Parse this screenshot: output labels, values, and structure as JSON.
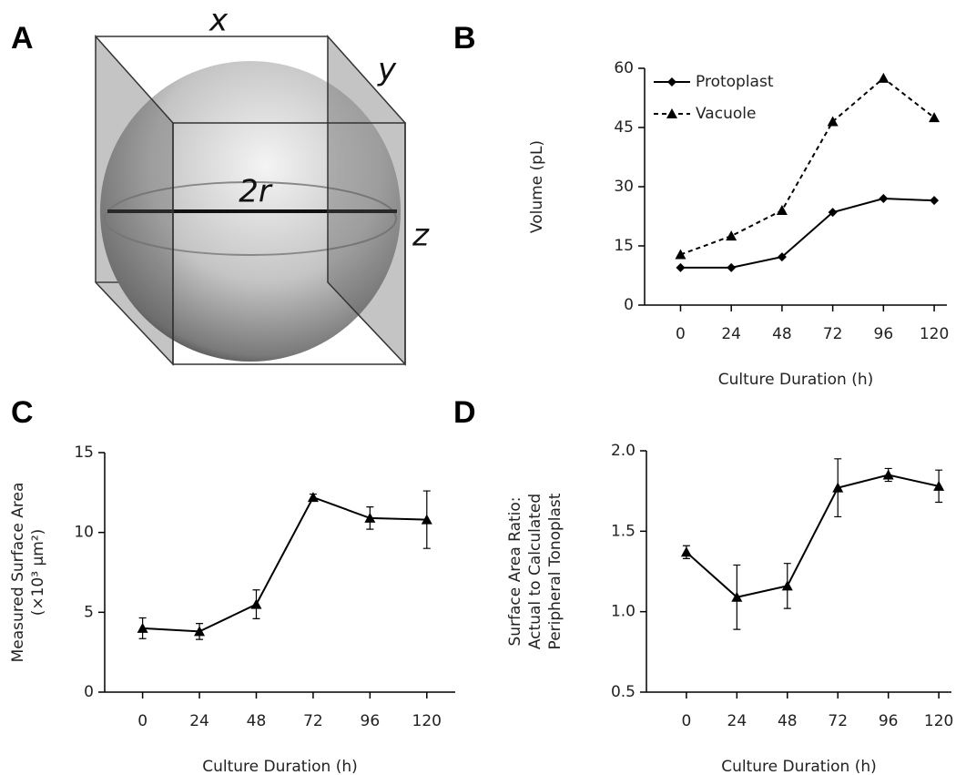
{
  "diagram": {
    "panel": "A",
    "x_label": "x",
    "y_label": "y",
    "z_label": "z",
    "diameter_label": "2r"
  },
  "chart_data": [
    {
      "type": "line",
      "panel": "B",
      "ylabel": [
        "Volume (pL)"
      ],
      "xlabel": "Culture Duration (h)",
      "x": [
        0,
        24,
        48,
        72,
        96,
        120
      ],
      "xlim": [
        -17,
        126
      ],
      "xticks": [
        0,
        24,
        48,
        72,
        96,
        120
      ],
      "ylim": [
        0,
        60
      ],
      "yticks": [
        0,
        15,
        30,
        45,
        60
      ],
      "legend": "top-left",
      "series": [
        {
          "name": "Protoplast",
          "color": "#000000",
          "marker": "diamond",
          "dash": false,
          "values": [
            9.5,
            9.5,
            12.2,
            23.5,
            27,
            26.5
          ]
        },
        {
          "name": "Vacuole",
          "color": "#000000",
          "marker": "triangle",
          "dash": true,
          "values": [
            12.8,
            17.5,
            24,
            46.5,
            57.5,
            47.5
          ]
        }
      ]
    },
    {
      "type": "line",
      "panel": "C",
      "ylabel": [
        "Measured Surface Area",
        "(×10³ μm²)"
      ],
      "xlabel": "Culture Duration (h)",
      "x": [
        0,
        24,
        48,
        72,
        96,
        120
      ],
      "xlim": [
        -16,
        132
      ],
      "xticks": [
        0,
        24,
        48,
        72,
        96,
        120
      ],
      "ylim": [
        0,
        15
      ],
      "yticks": [
        0,
        5,
        10,
        15
      ],
      "color": "#000000",
      "marker": "triangle",
      "dash": false,
      "values": [
        4.0,
        3.8,
        5.5,
        12.2,
        10.9,
        10.8
      ],
      "errors": [
        0.65,
        0.5,
        0.9,
        0.2,
        0.7,
        1.8
      ]
    },
    {
      "type": "line",
      "panel": "D",
      "ylabel": [
        "Surface Area Ratio:",
        "Actual to Calculated",
        "Peripheral Tonoplast"
      ],
      "xlabel": "Culture Duration (h)",
      "x": [
        0,
        24,
        48,
        72,
        96,
        120
      ],
      "xlim": [
        -19,
        126
      ],
      "xticks": [
        0,
        24,
        48,
        72,
        96,
        120
      ],
      "ylim": [
        0.5,
        2.0
      ],
      "yticks": [
        0.5,
        {
          "value": 1.0,
          "label": "1.0"
        },
        1.5,
        {
          "value": 2.0,
          "label": "2.0"
        }
      ],
      "color": "#000000",
      "marker": "triangle",
      "dash": false,
      "values": [
        1.37,
        1.09,
        1.16,
        1.77,
        1.85,
        1.78
      ],
      "errors": [
        0.04,
        0.2,
        0.14,
        0.18,
        0.04,
        0.1
      ]
    }
  ]
}
